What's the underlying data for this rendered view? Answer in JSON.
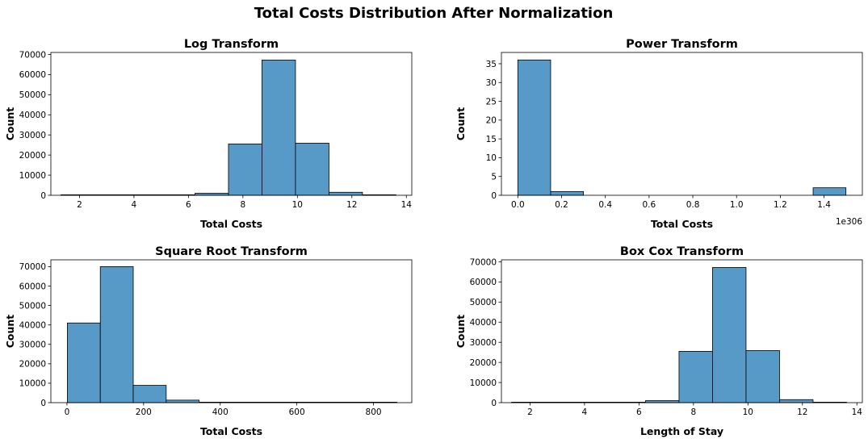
{
  "figure": {
    "suptitle": "Total Costs Distribution After Normalization",
    "bar_color": "#5799c7",
    "edge_color": "#000000"
  },
  "chart_data": [
    {
      "type": "bar",
      "title": "Log Transform",
      "xlabel": "Total Costs",
      "ylabel": "Count",
      "xlim": [
        0.95,
        14.2
      ],
      "ylim": [
        0,
        71000
      ],
      "xticks": [
        2,
        4,
        6,
        8,
        10,
        12,
        14
      ],
      "xtick_labels": [
        "2",
        "4",
        "6",
        "8",
        "10",
        "12",
        "14"
      ],
      "yticks": [
        0,
        10000,
        20000,
        30000,
        40000,
        50000,
        60000,
        70000
      ],
      "ytick_labels": [
        "0",
        "10000",
        "20000",
        "30000",
        "40000",
        "50000",
        "60000",
        "70000"
      ],
      "offset_label": "",
      "bin_edges": [
        1.32,
        2.55,
        3.78,
        5.01,
        6.24,
        7.47,
        8.7,
        9.93,
        11.16,
        12.39,
        13.62
      ],
      "values": [
        5,
        10,
        30,
        150,
        1000,
        25500,
        67200,
        25900,
        1500,
        100
      ]
    },
    {
      "type": "bar",
      "title": "Power Transform",
      "xlabel": "Total Costs",
      "ylabel": "Count",
      "xlim": [
        -0.075,
        1.575
      ],
      "ylim": [
        0,
        38
      ],
      "xticks": [
        0.0,
        0.2,
        0.4,
        0.6,
        0.8,
        1.0,
        1.2,
        1.4
      ],
      "xtick_labels": [
        "0.0",
        "0.2",
        "0.4",
        "0.6",
        "0.8",
        "1.0",
        "1.2",
        "1.4"
      ],
      "yticks": [
        0,
        5,
        10,
        15,
        20,
        25,
        30,
        35
      ],
      "ytick_labels": [
        "0",
        "5",
        "10",
        "15",
        "20",
        "25",
        "30",
        "35"
      ],
      "offset_label": "1e306",
      "bin_edges": [
        0.0,
        0.15,
        0.3,
        0.45,
        0.6,
        0.75,
        0.9,
        1.05,
        1.2,
        1.35,
        1.5
      ],
      "values": [
        36,
        1,
        0,
        0,
        0,
        0,
        0,
        0,
        0,
        2
      ]
    },
    {
      "type": "bar",
      "title": "Square Root Transform",
      "xlabel": "Total Costs",
      "ylabel": "Count",
      "xlim": [
        -42,
        900
      ],
      "ylim": [
        0,
        73500
      ],
      "xticks": [
        0,
        200,
        400,
        600,
        800
      ],
      "xtick_labels": [
        "0",
        "200",
        "400",
        "600",
        "800"
      ],
      "yticks": [
        0,
        10000,
        20000,
        30000,
        40000,
        50000,
        60000,
        70000
      ],
      "ytick_labels": [
        "0",
        "10000",
        "20000",
        "30000",
        "40000",
        "50000",
        "60000",
        "70000"
      ],
      "offset_label": "",
      "bin_edges": [
        1,
        87,
        173,
        259,
        345,
        431,
        517,
        603,
        689,
        775,
        861
      ],
      "values": [
        41000,
        70000,
        8900,
        1300,
        150,
        60,
        30,
        10,
        5,
        3
      ]
    },
    {
      "type": "bar",
      "title": "Box Cox Transform",
      "xlabel": "Length of Stay",
      "ylabel": "Count",
      "xlim": [
        0.95,
        14.2
      ],
      "ylim": [
        0,
        71000
      ],
      "xticks": [
        2,
        4,
        6,
        8,
        10,
        12,
        14
      ],
      "xtick_labels": [
        "2",
        "4",
        "6",
        "8",
        "10",
        "12",
        "14"
      ],
      "yticks": [
        0,
        10000,
        20000,
        30000,
        40000,
        50000,
        60000,
        70000
      ],
      "ytick_labels": [
        "0",
        "10000",
        "20000",
        "30000",
        "40000",
        "50000",
        "60000",
        "70000"
      ],
      "offset_label": "",
      "bin_edges": [
        1.32,
        2.55,
        3.78,
        5.01,
        6.24,
        7.47,
        8.7,
        9.93,
        11.16,
        12.39,
        13.62
      ],
      "values": [
        5,
        10,
        30,
        150,
        1000,
        25500,
        67200,
        25900,
        1500,
        100
      ]
    }
  ]
}
